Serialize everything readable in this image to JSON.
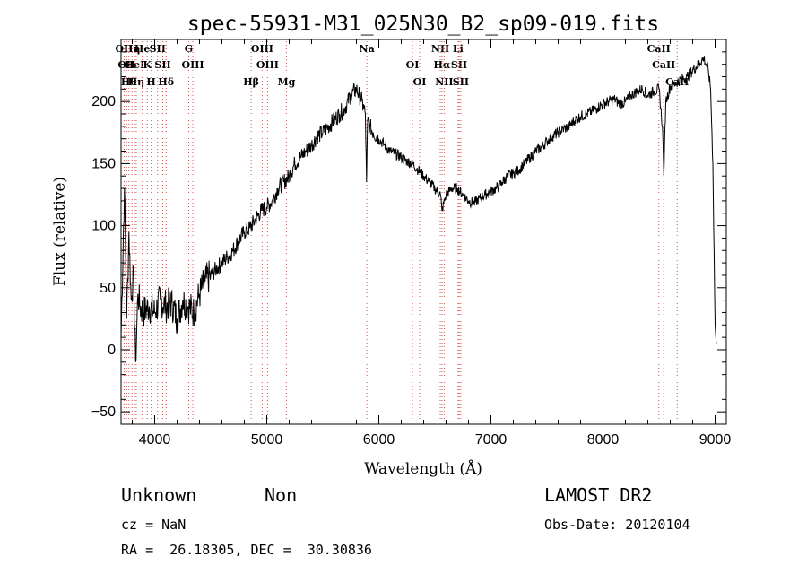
{
  "chart_data": {
    "type": "line",
    "title": "spec-55931-M31_025N30_B2_sp09-019.fits",
    "xlabel": "Wavelength (Å)",
    "ylabel": "Flux (relative)",
    "xlim": [
      3700,
      9100
    ],
    "ylim": [
      -60,
      250
    ],
    "xticks": [
      4000,
      5000,
      6000,
      7000,
      8000,
      9000
    ],
    "yticks": [
      -50,
      0,
      50,
      100,
      150,
      200
    ],
    "xtick_labels": [
      "4000",
      "5000",
      "6000",
      "7000",
      "8000",
      "9000"
    ],
    "ytick_labels": [
      "−50",
      "0",
      "50",
      "100",
      "150",
      "200"
    ],
    "grid": false,
    "line_color": "#000000",
    "marker_line_color": "#d05050",
    "series": [
      {
        "x": [
          3700,
          3730,
          3750,
          3770,
          3790,
          3810,
          3830,
          3850,
          3870,
          3900,
          3950,
          4000,
          4050,
          4100,
          4150,
          4200,
          4250,
          4300,
          4350,
          4400,
          4450,
          4500,
          4550,
          4600,
          4650,
          4700,
          4750,
          4800,
          4850,
          4900,
          4950,
          5000,
          5050,
          5100,
          5150,
          5200,
          5250,
          5300,
          5350,
          5400,
          5450,
          5500,
          5550,
          5600,
          5650,
          5700,
          5750,
          5800,
          5850,
          5880,
          5890,
          5900,
          5920,
          5950,
          6000,
          6050,
          6100,
          6150,
          6200,
          6250,
          6300,
          6350,
          6400,
          6450,
          6500,
          6550,
          6563,
          6600,
          6650,
          6700,
          6750,
          6800,
          6850,
          6900,
          6950,
          7000,
          7050,
          7100,
          7150,
          7200,
          7250,
          7300,
          7350,
          7400,
          7450,
          7500,
          7550,
          7600,
          7650,
          7700,
          7750,
          7800,
          7850,
          7900,
          7950,
          8000,
          8050,
          8100,
          8150,
          8200,
          8250,
          8300,
          8350,
          8400,
          8450,
          8500,
          8530,
          8542,
          8560,
          8600,
          8650,
          8700,
          8750,
          8800,
          8850,
          8900,
          8940,
          8960,
          8980,
          9000,
          9010
        ],
        "y": [
          10,
          130,
          25,
          95,
          40,
          60,
          -10,
          45,
          35,
          30,
          35,
          30,
          40,
          35,
          38,
          25,
          40,
          35,
          30,
          45,
          55,
          60,
          65,
          70,
          75,
          80,
          88,
          95,
          98,
          105,
          112,
          115,
          120,
          130,
          135,
          140,
          150,
          155,
          160,
          165,
          172,
          175,
          180,
          185,
          190,
          195,
          205,
          210,
          200,
          190,
          135,
          185,
          180,
          175,
          170,
          165,
          160,
          158,
          155,
          152,
          150,
          145,
          140,
          135,
          130,
          125,
          112,
          125,
          130,
          130,
          125,
          120,
          118,
          122,
          125,
          128,
          130,
          135,
          140,
          142,
          145,
          150,
          155,
          160,
          163,
          168,
          172,
          175,
          178,
          180,
          185,
          188,
          190,
          192,
          195,
          198,
          200,
          202,
          198,
          200,
          205,
          208,
          210,
          205,
          208,
          210,
          180,
          140,
          200,
          212,
          215,
          218,
          220,
          225,
          230,
          235,
          225,
          210,
          150,
          20,
          5
        ]
      }
    ],
    "line_markers": [
      {
        "x": 3727,
        "labels": [
          "OII"
        ]
      },
      {
        "x": 3750,
        "labels": [
          "OII"
        ]
      },
      {
        "x": 3770,
        "labels": [
          "Hθ"
        ]
      },
      {
        "x": 3798,
        "labels": [
          "Hη"
        ]
      },
      {
        "x": 3820,
        "labels": [
          "HeI"
        ]
      },
      {
        "x": 3835,
        "labels": [
          "Hη"
        ]
      },
      {
        "x": 3889,
        "labels": [
          "He"
        ]
      },
      {
        "x": 3934,
        "labels": [
          "K"
        ]
      },
      {
        "x": 3969,
        "labels": [
          "H"
        ]
      },
      {
        "x": 4026,
        "labels": [
          "SII"
        ]
      },
      {
        "x": 4072,
        "labels": [
          "SII"
        ]
      },
      {
        "x": 4102,
        "labels": [
          "Hδ"
        ]
      },
      {
        "x": 4304,
        "labels": [
          "G"
        ]
      },
      {
        "x": 4340,
        "labels": [
          "OIII"
        ]
      },
      {
        "x": 4861,
        "labels": [
          "Hβ"
        ]
      },
      {
        "x": 4959,
        "labels": [
          "OIII"
        ]
      },
      {
        "x": 5007,
        "labels": [
          "OIII"
        ]
      },
      {
        "x": 5175,
        "labels": [
          "Mg"
        ]
      },
      {
        "x": 5893,
        "labels": [
          "Na"
        ]
      },
      {
        "x": 6300,
        "labels": [
          "OI"
        ]
      },
      {
        "x": 6364,
        "labels": [
          "OI"
        ]
      },
      {
        "x": 6548,
        "labels": [
          "NII"
        ]
      },
      {
        "x": 6563,
        "labels": [
          "Hα"
        ]
      },
      {
        "x": 6583,
        "labels": [
          "NII"
        ]
      },
      {
        "x": 6707,
        "labels": [
          "Li"
        ]
      },
      {
        "x": 6716,
        "labels": [
          "SII"
        ]
      },
      {
        "x": 6731,
        "labels": [
          "SII"
        ]
      },
      {
        "x": 8498,
        "labels": [
          "CaII"
        ]
      },
      {
        "x": 8542,
        "labels": [
          "CaII"
        ]
      },
      {
        "x": 8662,
        "labels": [
          "CaII"
        ]
      }
    ]
  },
  "info": {
    "class_label": "Unknown",
    "subclass_label": "Non",
    "survey": "LAMOST DR2",
    "cz": "cz = NaN",
    "obs_date": "Obs-Date: 20120104",
    "radec": "RA =  26.18305, DEC =  30.30836"
  }
}
